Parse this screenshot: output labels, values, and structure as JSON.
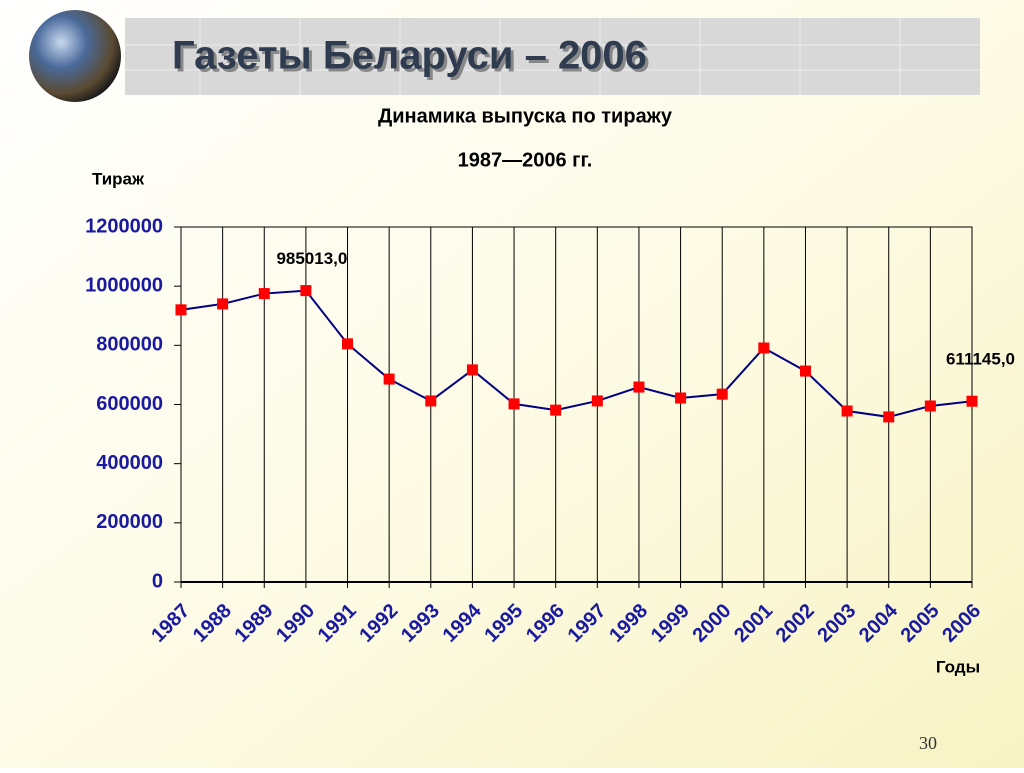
{
  "header": {
    "title": "Газеты Беларуси – 2006"
  },
  "page_number": "30",
  "chart_data": {
    "type": "line",
    "title": "Динамика выпуска по тиражу",
    "subtitle": "1987—2006 гг.",
    "y_label": "Тираж",
    "x_label": "Годы",
    "categories": [
      "1987",
      "1988",
      "1989",
      "1990",
      "1991",
      "1992",
      "1993",
      "1994",
      "1995",
      "1996",
      "1997",
      "1998",
      "1999",
      "2000",
      "2001",
      "2002",
      "2003",
      "2004",
      "2005",
      "2006"
    ],
    "series": [
      {
        "name": "Тираж",
        "color": "#000080",
        "marker_color": "#ff0000",
        "values": [
          920000,
          940000,
          975000,
          985013,
          805000,
          686000,
          612000,
          717000,
          602000,
          581000,
          612000,
          659000,
          622000,
          635000,
          791000,
          713000,
          578000,
          558000,
          595000,
          611145
        ],
        "value_labels": [
          null,
          null,
          null,
          "985013,0",
          null,
          null,
          null,
          null,
          null,
          null,
          null,
          null,
          null,
          null,
          null,
          null,
          null,
          null,
          null,
          "611145,0"
        ]
      }
    ],
    "ylim": [
      0,
      1200000
    ],
    "yticks": [
      0,
      200000,
      400000,
      600000,
      800000,
      1000000,
      1200000
    ],
    "grid": true
  }
}
